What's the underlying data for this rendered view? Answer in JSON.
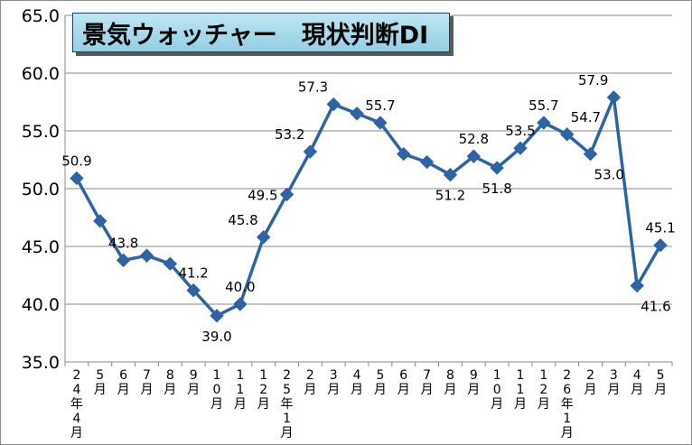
{
  "chart_data": {
    "type": "line",
    "title": "景気ウォッチャー　現状判断DI",
    "xlabel": "",
    "ylabel": "",
    "ylim": [
      35.0,
      65.0
    ],
    "yticks": [
      "35.0",
      "40.0",
      "45.0",
      "50.0",
      "55.0",
      "60.0",
      "65.0"
    ],
    "grid": "horizontal",
    "categories": [
      "24年4月",
      "5月",
      "6月",
      "7月",
      "8月",
      "9月",
      "10月",
      "11月",
      "12月",
      "25年1月",
      "2月",
      "3月",
      "4月",
      "5月",
      "6月",
      "7月",
      "8月",
      "9月",
      "10月",
      "11月",
      "12月",
      "26年1月",
      "2月",
      "3月",
      "4月",
      "5月"
    ],
    "series": [
      {
        "values": [
          50.9,
          47.2,
          43.8,
          44.2,
          43.5,
          41.2,
          39.0,
          40.0,
          45.8,
          49.5,
          53.2,
          57.3,
          56.5,
          55.7,
          53.0,
          52.3,
          51.2,
          52.8,
          51.8,
          53.5,
          55.7,
          54.7,
          53.0,
          57.9,
          41.6,
          45.1
        ],
        "color": "#2e63a5"
      }
    ],
    "data_labels": [
      {
        "index": 0,
        "text": "50.9",
        "pos": "above"
      },
      {
        "index": 2,
        "text": "43.8",
        "pos": "above"
      },
      {
        "index": 5,
        "text": "41.2",
        "pos": "above"
      },
      {
        "index": 6,
        "text": "39.0",
        "pos": "below"
      },
      {
        "index": 7,
        "text": "40.0",
        "pos": "above"
      },
      {
        "index": 8,
        "text": "45.8",
        "pos": "above-left"
      },
      {
        "index": 9,
        "text": "49.5",
        "pos": "left"
      },
      {
        "index": 10,
        "text": "53.2",
        "pos": "above-left"
      },
      {
        "index": 11,
        "text": "57.3",
        "pos": "above-left"
      },
      {
        "index": 13,
        "text": "55.7",
        "pos": "above"
      },
      {
        "index": 16,
        "text": "51.2",
        "pos": "below"
      },
      {
        "index": 17,
        "text": "52.8",
        "pos": "above"
      },
      {
        "index": 18,
        "text": "51.8",
        "pos": "below"
      },
      {
        "index": 19,
        "text": "53.5",
        "pos": "above"
      },
      {
        "index": 20,
        "text": "55.7",
        "pos": "above"
      },
      {
        "index": 21,
        "text": "54.7",
        "pos": "above-right"
      },
      {
        "index": 22,
        "text": "53.0",
        "pos": "below-right"
      },
      {
        "index": 23,
        "text": "57.9",
        "pos": "above-left"
      },
      {
        "index": 24,
        "text": "41.6",
        "pos": "below-right"
      },
      {
        "index": 25,
        "text": "45.1",
        "pos": "above"
      }
    ]
  }
}
